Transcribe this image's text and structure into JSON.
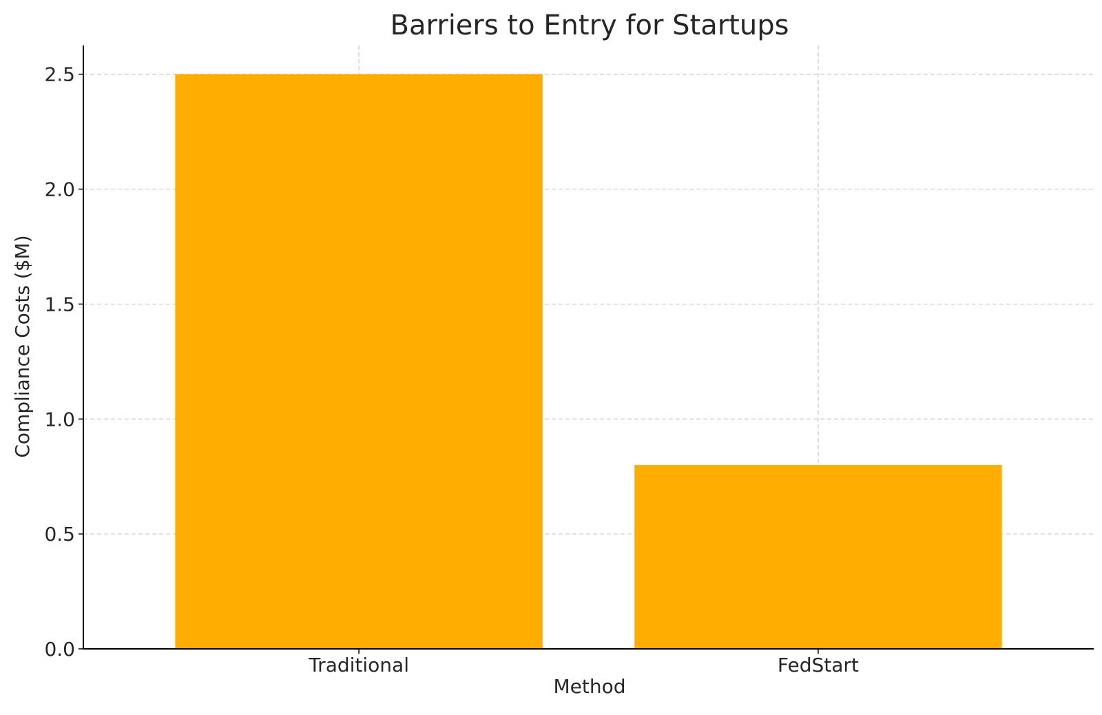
{
  "chart_data": {
    "type": "bar",
    "title": "Barriers to Entry for Startups",
    "xlabel": "Method",
    "ylabel": "Compliance Costs ($M)",
    "categories": [
      "Traditional",
      "FedStart"
    ],
    "values": [
      2.5,
      0.8
    ],
    "ylim": [
      0,
      2.625
    ],
    "yticks": [
      0.0,
      0.5,
      1.0,
      1.5,
      2.0,
      2.5
    ],
    "ytick_labels": [
      "0.0",
      "0.5",
      "1.0",
      "1.5",
      "2.0",
      "2.5"
    ],
    "grid": true,
    "bar_color": "#FFAE00"
  }
}
